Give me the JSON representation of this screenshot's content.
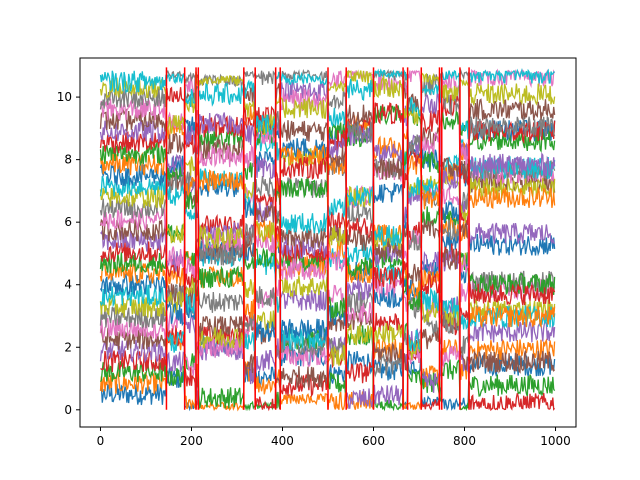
{
  "chart_data": {
    "type": "line",
    "title": "",
    "xlabel": "",
    "ylabel": "",
    "xlim": [
      -45,
      1045
    ],
    "ylim": [
      -0.55,
      11.25
    ],
    "x_ticks": [
      0,
      200,
      400,
      600,
      800,
      1000
    ],
    "y_ticks": [
      0,
      2,
      4,
      6,
      8,
      10
    ],
    "x_tick_labels": [
      "0",
      "200",
      "400",
      "600",
      "800",
      "1000"
    ],
    "y_tick_labels": [
      "0",
      "2",
      "4",
      "6",
      "8",
      "10"
    ],
    "grid": false,
    "legend": "none",
    "n_points": 1000,
    "series_count": 30,
    "series_noise_amplitude": 0.35,
    "palette": [
      "#1f77b4",
      "#ff7f0e",
      "#2ca02c",
      "#d62728",
      "#9467bd",
      "#8c564b",
      "#e377c2",
      "#7f7f7f",
      "#bcbd22",
      "#17becf"
    ],
    "series_levels": [
      0.5,
      0.85,
      1.2,
      1.55,
      1.9,
      2.25,
      2.6,
      2.95,
      3.3,
      3.65,
      4.0,
      4.35,
      4.7,
      5.05,
      5.4,
      5.75,
      6.1,
      6.45,
      6.8,
      7.15,
      7.5,
      7.85,
      8.2,
      8.55,
      8.9,
      9.25,
      9.6,
      9.95,
      10.3,
      10.5
    ],
    "segment_boundaries": [
      145,
      185,
      210,
      215,
      315,
      340,
      385,
      395,
      500,
      540,
      600,
      665,
      675,
      705,
      745,
      750,
      790,
      810
    ],
    "vertical_lines": {
      "color": "#ff0000",
      "x": [
        145,
        185,
        210,
        215,
        315,
        340,
        385,
        395,
        500,
        540,
        600,
        665,
        675,
        705,
        745,
        750,
        790,
        810
      ],
      "ymin": 0.0,
      "ymax": 10.95
    }
  }
}
